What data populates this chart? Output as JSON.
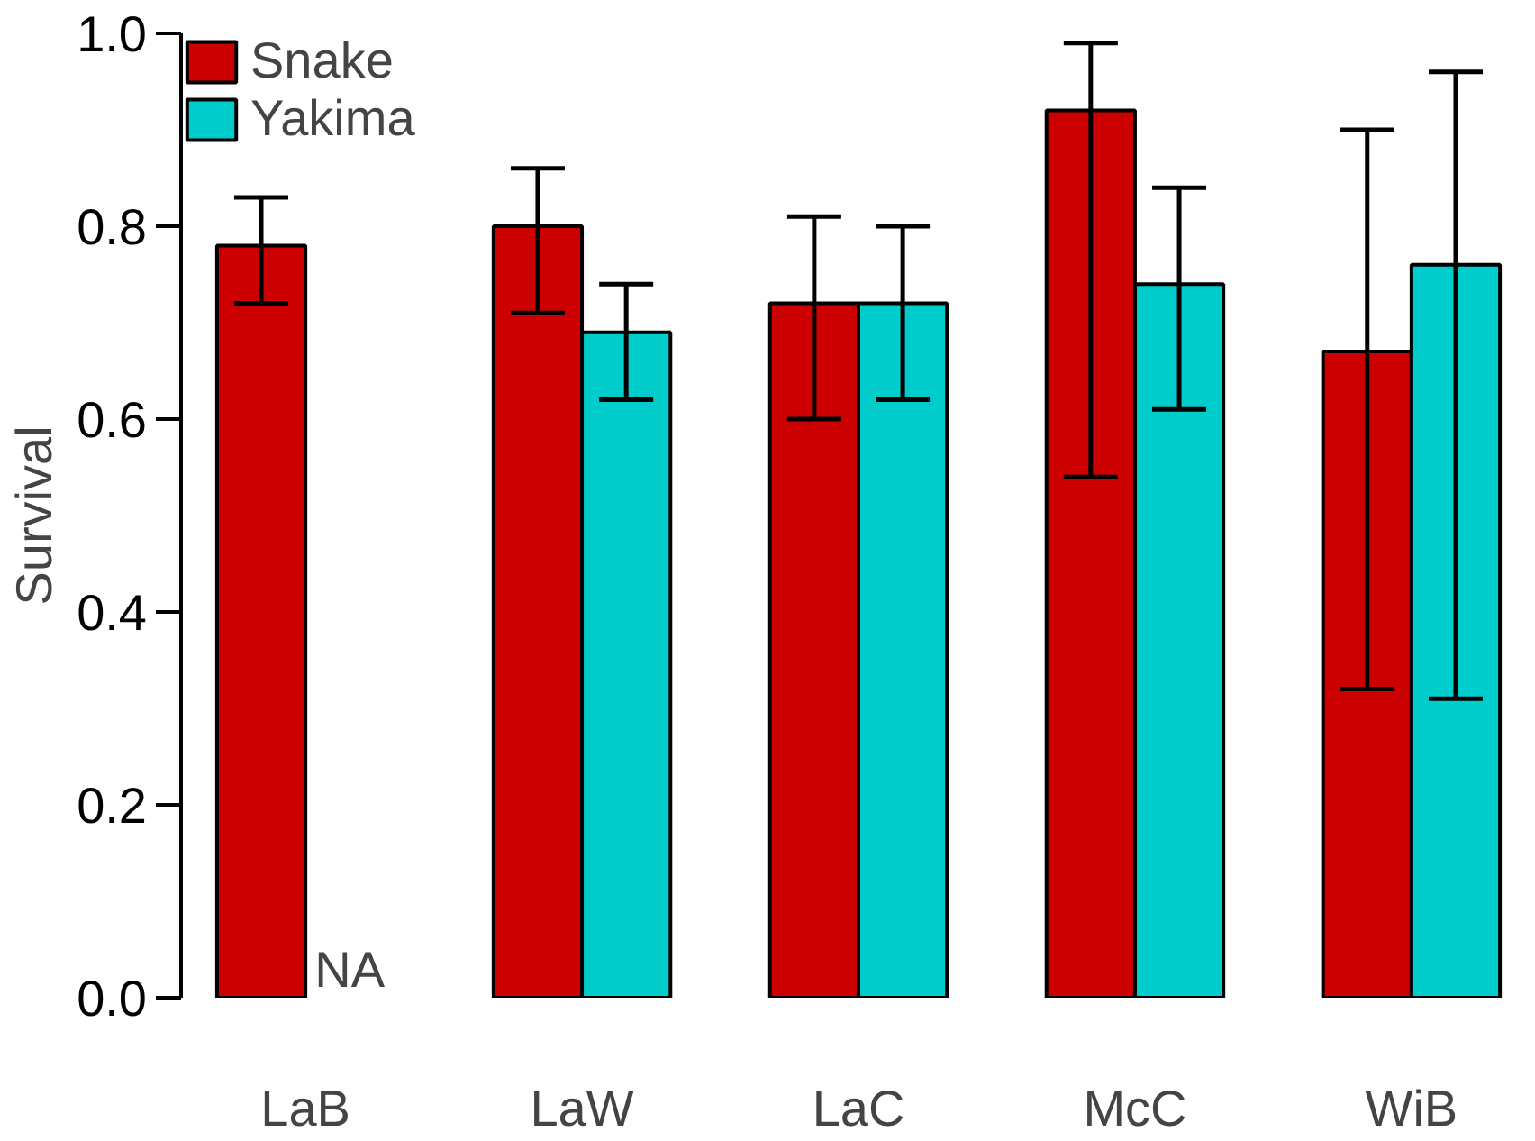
{
  "chart_data": {
    "type": "bar",
    "ylabel": "Survival",
    "categories": [
      "LaB",
      "LaW",
      "LaC",
      "McC",
      "WiB"
    ],
    "series": [
      {
        "name": "Snake",
        "color": "#cc0000",
        "values": [
          0.78,
          0.8,
          0.72,
          0.92,
          0.67
        ],
        "errors": [
          [
            0.72,
            0.83
          ],
          [
            0.71,
            0.86
          ],
          [
            0.6,
            0.81
          ],
          [
            0.54,
            0.99
          ],
          [
            0.32,
            0.9
          ]
        ]
      },
      {
        "name": "Yakima",
        "color": "#00cccc",
        "values": [
          null,
          0.69,
          0.72,
          0.74,
          0.76
        ],
        "errors": [
          null,
          [
            0.62,
            0.74
          ],
          [
            0.62,
            0.8
          ],
          [
            0.61,
            0.84
          ],
          [
            0.31,
            0.96
          ]
        ]
      }
    ],
    "annotations": [
      {
        "text": "NA",
        "x": "LaB",
        "y": 0
      }
    ],
    "ylim": [
      0,
      1
    ],
    "yticks": [
      {
        "value": 0,
        "label": "0.0"
      },
      {
        "value": 0.2,
        "label": "0.2"
      },
      {
        "value": 0.4,
        "label": "0.4"
      },
      {
        "value": 0.6,
        "label": "0.6"
      },
      {
        "value": 0.8,
        "label": "0.8"
      },
      {
        "value": 1,
        "label": "1.0"
      }
    ],
    "grid": false,
    "legend": "top left"
  }
}
